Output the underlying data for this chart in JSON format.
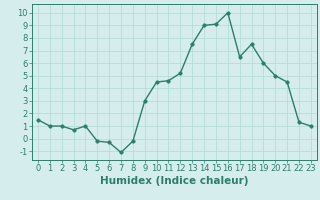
{
  "x": [
    0,
    1,
    2,
    3,
    4,
    5,
    6,
    7,
    8,
    9,
    10,
    11,
    12,
    13,
    14,
    15,
    16,
    17,
    18,
    19,
    20,
    21,
    22,
    23
  ],
  "y": [
    1.5,
    1.0,
    1.0,
    0.7,
    1.0,
    -0.2,
    -0.3,
    -1.1,
    -0.2,
    3.0,
    4.5,
    4.6,
    5.2,
    7.5,
    9.0,
    9.1,
    10.0,
    6.5,
    7.5,
    6.0,
    5.0,
    4.5,
    1.3,
    1.0
  ],
  "line_color": "#2d7d6e",
  "marker_color": "#2d7d6e",
  "bg_color": "#d5eeed",
  "grid_color": "#b0d9d4",
  "xlabel": "Humidex (Indice chaleur)",
  "xlim": [
    -0.5,
    23.5
  ],
  "ylim": [
    -1.7,
    10.7
  ],
  "yticks": [
    -1,
    0,
    1,
    2,
    3,
    4,
    5,
    6,
    7,
    8,
    9,
    10
  ],
  "xtick_labels": [
    "0",
    "1",
    "2",
    "3",
    "4",
    "5",
    "6",
    "7",
    "8",
    "9",
    "10",
    "11",
    "12",
    "13",
    "14",
    "15",
    "16",
    "17",
    "18",
    "19",
    "20",
    "21",
    "22",
    "23"
  ],
  "font_color": "#2d7d6e",
  "tick_fontsize": 6.0,
  "xlabel_fontsize": 7.5,
  "marker_size": 2.5,
  "line_width": 1.0,
  "spine_color": "#2d7d6e"
}
